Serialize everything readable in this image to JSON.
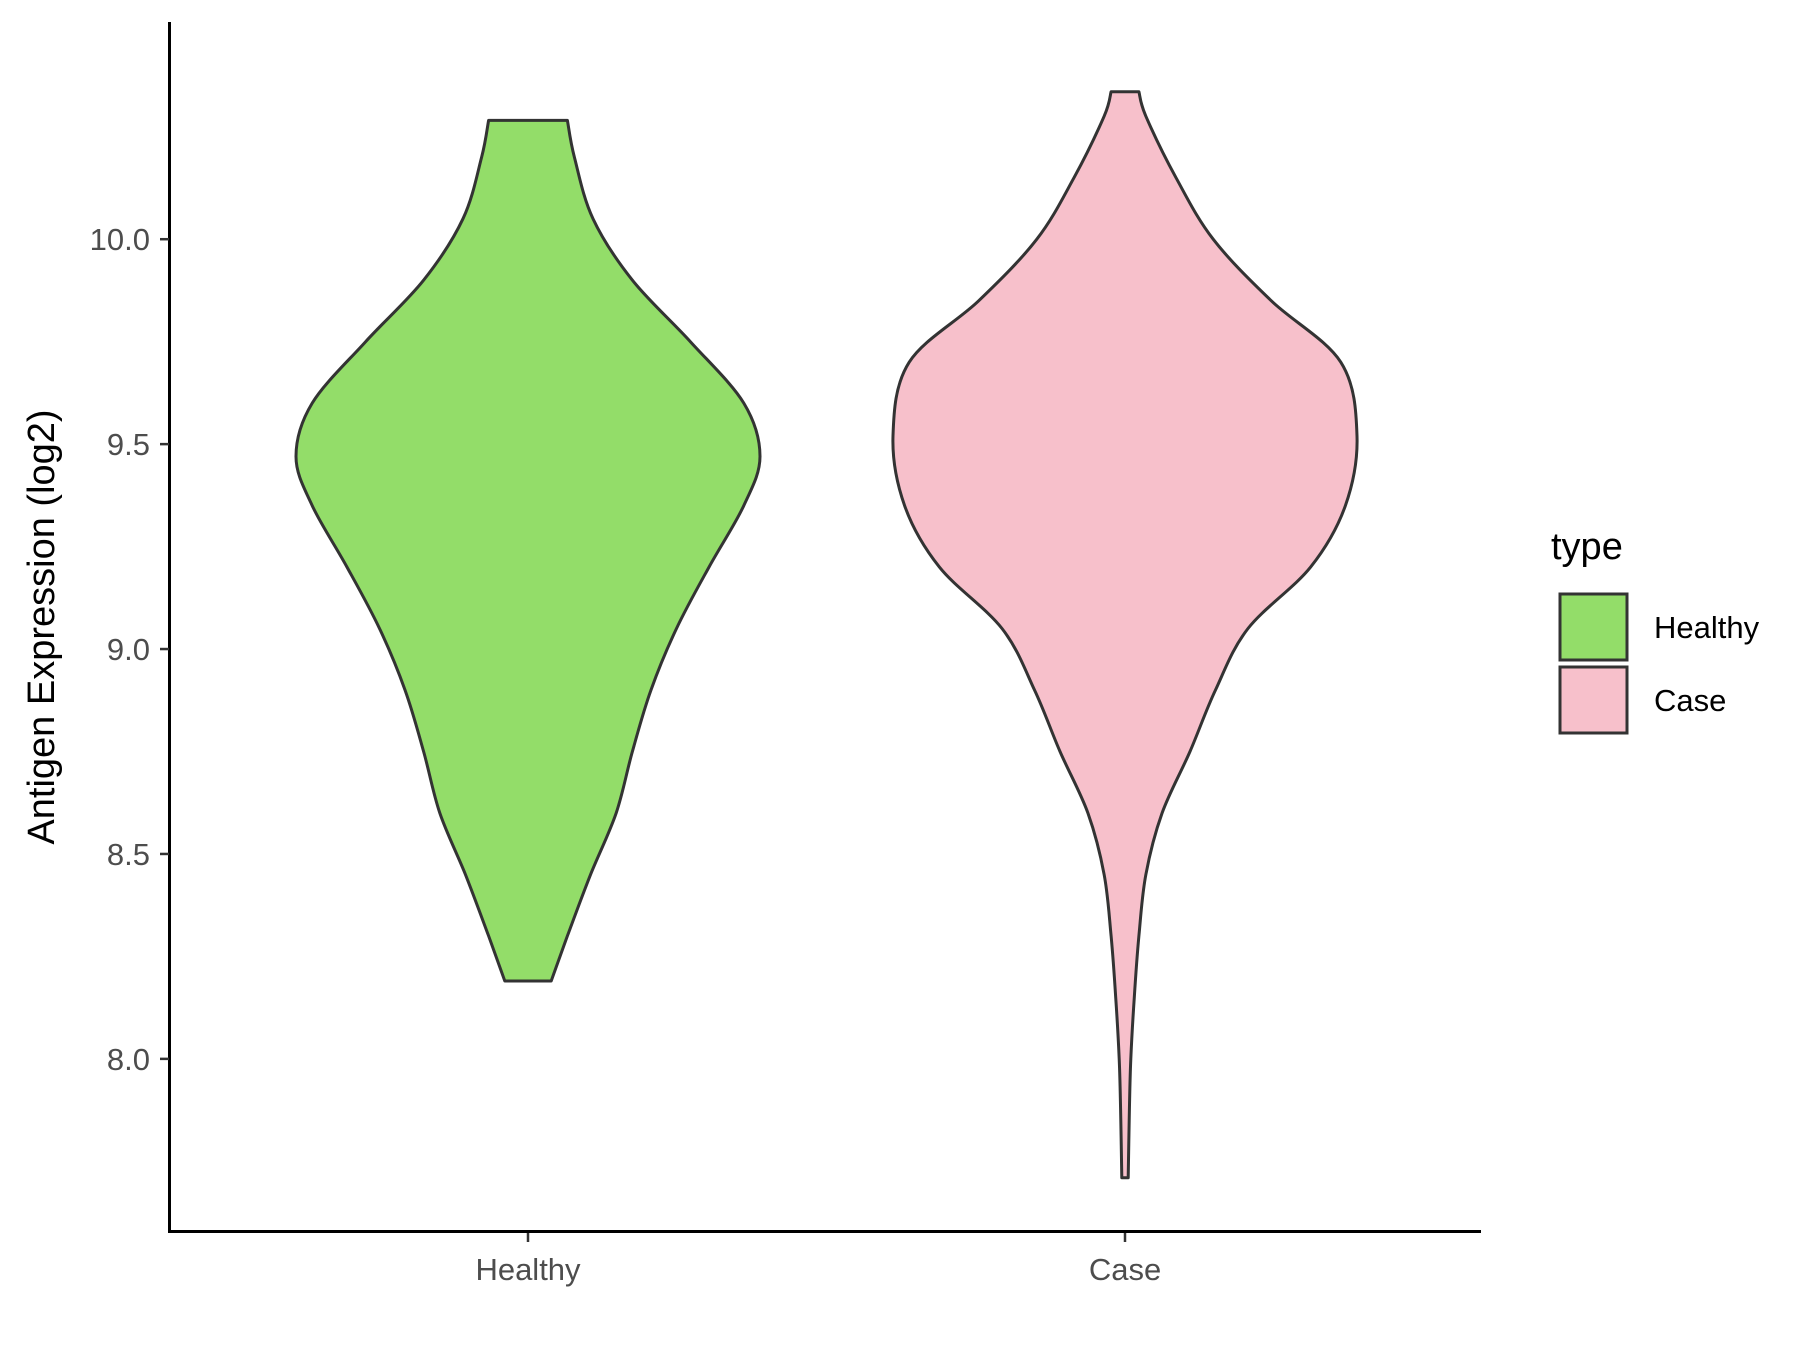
{
  "chart_data": {
    "type": "violin",
    "ylabel": "Antigen Expression (log2)",
    "xlabel": "",
    "categories": [
      "Healthy",
      "Case"
    ],
    "y_ticks": [
      "8.0",
      "8.5",
      "9.0",
      "9.5",
      "10.0"
    ],
    "ylim": [
      7.58,
      10.53
    ],
    "grid": false,
    "legend": {
      "title": "type",
      "position": "right",
      "entries": [
        {
          "label": "Healthy",
          "color": "#93dd69"
        },
        {
          "label": "Case",
          "color": "#f7c0cb"
        }
      ]
    },
    "series": [
      {
        "category": "Healthy",
        "color": "#93dd69",
        "min": 8.19,
        "max": 10.29,
        "density": [
          [
            8.19,
            0.1
          ],
          [
            8.3,
            0.17
          ],
          [
            8.45,
            0.27
          ],
          [
            8.6,
            0.38
          ],
          [
            8.75,
            0.45
          ],
          [
            8.9,
            0.53
          ],
          [
            9.05,
            0.64
          ],
          [
            9.2,
            0.78
          ],
          [
            9.35,
            0.93
          ],
          [
            9.47,
            1.0
          ],
          [
            9.6,
            0.93
          ],
          [
            9.75,
            0.7
          ],
          [
            9.9,
            0.45
          ],
          [
            10.05,
            0.28
          ],
          [
            10.2,
            0.2
          ],
          [
            10.29,
            0.17
          ]
        ]
      },
      {
        "category": "Case",
        "color": "#f7c0cb",
        "min": 7.71,
        "max": 10.36,
        "density": [
          [
            7.71,
            0.014
          ],
          [
            7.85,
            0.018
          ],
          [
            8.0,
            0.025
          ],
          [
            8.15,
            0.04
          ],
          [
            8.3,
            0.06
          ],
          [
            8.45,
            0.09
          ],
          [
            8.6,
            0.16
          ],
          [
            8.75,
            0.28
          ],
          [
            8.9,
            0.39
          ],
          [
            9.05,
            0.53
          ],
          [
            9.2,
            0.8
          ],
          [
            9.35,
            0.95
          ],
          [
            9.52,
            1.0
          ],
          [
            9.7,
            0.93
          ],
          [
            9.85,
            0.63
          ],
          [
            10.0,
            0.38
          ],
          [
            10.15,
            0.22
          ],
          [
            10.3,
            0.09
          ],
          [
            10.36,
            0.06
          ]
        ]
      }
    ]
  }
}
